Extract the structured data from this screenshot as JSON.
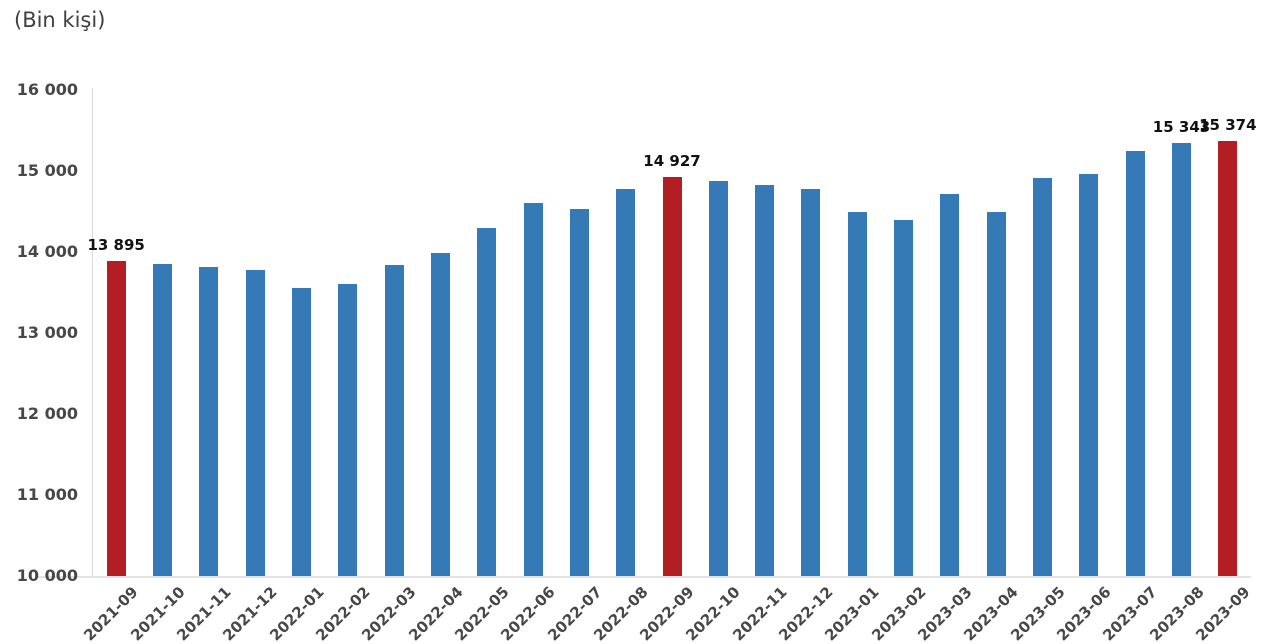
{
  "title": "(Bin kişi)",
  "colors": {
    "bar": "#3679B7",
    "highlight": "#B21E24",
    "axis_line": "#D9D9D9",
    "tick_text": "#474747",
    "data_label_text": "#111111"
  },
  "y_axis": {
    "tick_labels": [
      "16 000",
      "15 000",
      "14 000",
      "13 000",
      "12 000",
      "11 000",
      "10 000"
    ]
  },
  "chart_data": {
    "type": "bar",
    "title": "(Bin kişi)",
    "categories": [
      "2021-09",
      "2021-10",
      "2021-11",
      "2021-12",
      "2022-01",
      "2022-02",
      "2022-03",
      "2022-04",
      "2022-05",
      "2022-06",
      "2022-07",
      "2022-08",
      "2022-09",
      "2022-10",
      "2022-11",
      "2022-12",
      "2023-01",
      "2023-02",
      "2023-03",
      "2023-04",
      "2023-05",
      "2023-06",
      "2023-07",
      "2023-08",
      "2023-09"
    ],
    "values": [
      13895,
      13850,
      13820,
      13775,
      13550,
      13610,
      13845,
      13990,
      14300,
      14600,
      14530,
      14780,
      14927,
      14880,
      14830,
      14780,
      14490,
      14390,
      14710,
      14490,
      14910,
      14960,
      15250,
      15343,
      15374
    ],
    "highlighted_categories": [
      "2021-09",
      "2022-09",
      "2023-09"
    ],
    "data_labels": [
      {
        "category": "2021-09",
        "text": "13 895"
      },
      {
        "category": "2022-09",
        "text": "14 927"
      },
      {
        "category": "2023-08",
        "text": "15 343"
      },
      {
        "category": "2023-09",
        "text": "15 374"
      }
    ],
    "xlabel": "",
    "ylabel": "",
    "ylim": [
      10000,
      16000
    ],
    "y_tick_step": 1000,
    "grid": false,
    "legend": false
  }
}
